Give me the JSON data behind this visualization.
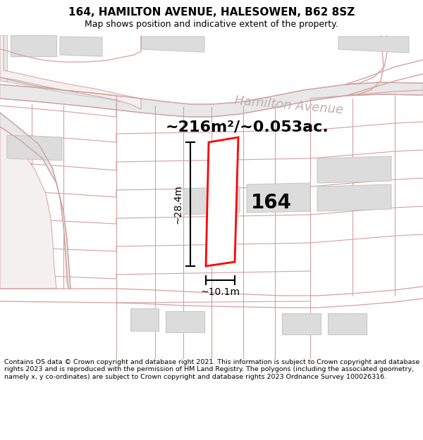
{
  "title": "164, HAMILTON AVENUE, HALESOWEN, B62 8SZ",
  "subtitle": "Map shows position and indicative extent of the property.",
  "footer": "Contains OS data © Crown copyright and database right 2021. This information is subject to Crown copyright and database rights 2023 and is reproduced with the permission of HM Land Registry. The polygons (including the associated geometry, namely x, y co-ordinates) are subject to Crown copyright and database rights 2023 Ordnance Survey 100026316.",
  "area_label": "~216m²/~0.053ac.",
  "street_label": "Hamilton Avenue",
  "number_label": "164",
  "dim_height": "~28.4m",
  "dim_width": "~10.1m",
  "bg_color": "#ffffff",
  "map_bg": "#ffffff",
  "road_fill": "#f0e8e8",
  "road_edge": "#d4a0a0",
  "bld_fill": "#dcdcdc",
  "bld_edge": "#c8c8c8",
  "prop_line_color": "#f0b8b8",
  "road_gray_fill": "#e8e8e8",
  "road_gray_edge": "#c8c8c8",
  "plot_color": "#ff0000",
  "plot_fill": "#ffffff",
  "street_text_color": "#c0b0b0",
  "title_fontsize": 11,
  "subtitle_fontsize": 9,
  "footer_fontsize": 6.8,
  "area_fontsize": 16,
  "street_fontsize": 13,
  "number_fontsize": 20,
  "dim_fontsize": 10
}
